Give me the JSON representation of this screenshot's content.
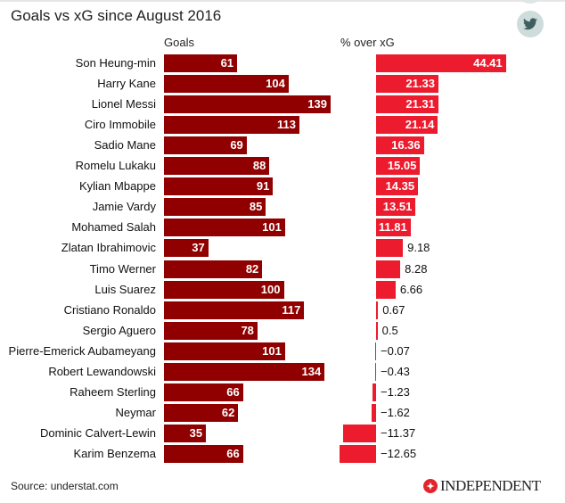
{
  "chart_data": {
    "type": "bar",
    "title": "Goals vs xG since August 2016",
    "source": "Source: understat.com",
    "categories": [
      "Son Heung-min",
      "Harry Kane",
      "Lionel Messi",
      "Ciro Immobile",
      "Sadio Mane",
      "Romelu Lukaku",
      "Kylian Mbappe",
      "Jamie Vardy",
      "Mohamed Salah",
      "Zlatan Ibrahimovic",
      "Timo Werner",
      "Luis Suarez",
      "Cristiano Ronaldo",
      "Sergio Aguero",
      "Pierre-Emerick Aubameyang",
      "Robert Lewandowski",
      "Raheem Sterling",
      "Neymar",
      "Dominic Calvert-Lewin",
      "Karim Benzema"
    ],
    "series": [
      {
        "name": "Goals",
        "color": "#900000",
        "values": [
          61,
          104,
          139,
          113,
          69,
          88,
          91,
          85,
          101,
          37,
          82,
          100,
          117,
          78,
          101,
          134,
          66,
          62,
          35,
          66
        ]
      },
      {
        "name": "% over xG",
        "color": "#ec1c2e",
        "values": [
          44.41,
          21.33,
          21.31,
          21.14,
          16.36,
          15.05,
          14.35,
          13.51,
          11.81,
          9.18,
          8.28,
          6.66,
          0.67,
          0.5,
          -0.07,
          -0.43,
          -1.23,
          -1.62,
          -11.37,
          -12.65
        ]
      }
    ],
    "grid": false,
    "legend": "none"
  },
  "brand": "INDEPENDENT",
  "icons": {
    "share": "twitter-icon"
  }
}
